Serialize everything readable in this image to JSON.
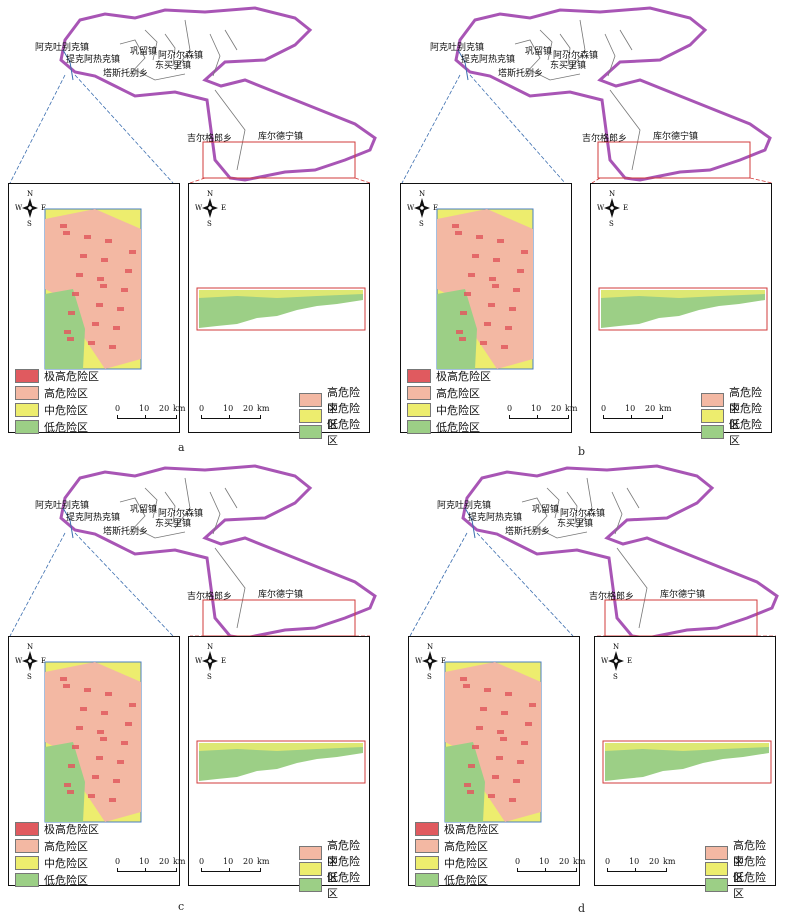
{
  "towns": {
    "akto": "阿克吐别克镇",
    "tikea": "提克阿热克镇",
    "gongliu": "巩留镇",
    "akenuer": "阿尕尔森镇",
    "dongmaili": "东买里镇",
    "tasituo": "塔斯托别乡",
    "guerge": "吉尔格郎乡",
    "kuerde": "库尔德宁镇"
  },
  "legend_left": [
    "极高危险区",
    "高危险区",
    "中危险区",
    "低危险区"
  ],
  "legend_right": [
    "高危险区",
    "中危险区",
    "低危险区"
  ],
  "colors": {
    "very_high": "#e05a5f",
    "high": "#f3b8a3",
    "medium": "#eded6e",
    "low": "#9ccf86",
    "boundary": "#a855b5",
    "frame_red": "#d23b3b",
    "leader": "#3d6fb0"
  },
  "compass": {
    "n": "N",
    "s": "S",
    "w": "W",
    "e": "E"
  },
  "scale": {
    "t0": "0",
    "t1": "10",
    "t2": "20",
    "unit": "km"
  },
  "panels": [
    {
      "letter": "a"
    },
    {
      "letter": "b"
    },
    {
      "letter": "c"
    },
    {
      "letter": "d"
    }
  ]
}
